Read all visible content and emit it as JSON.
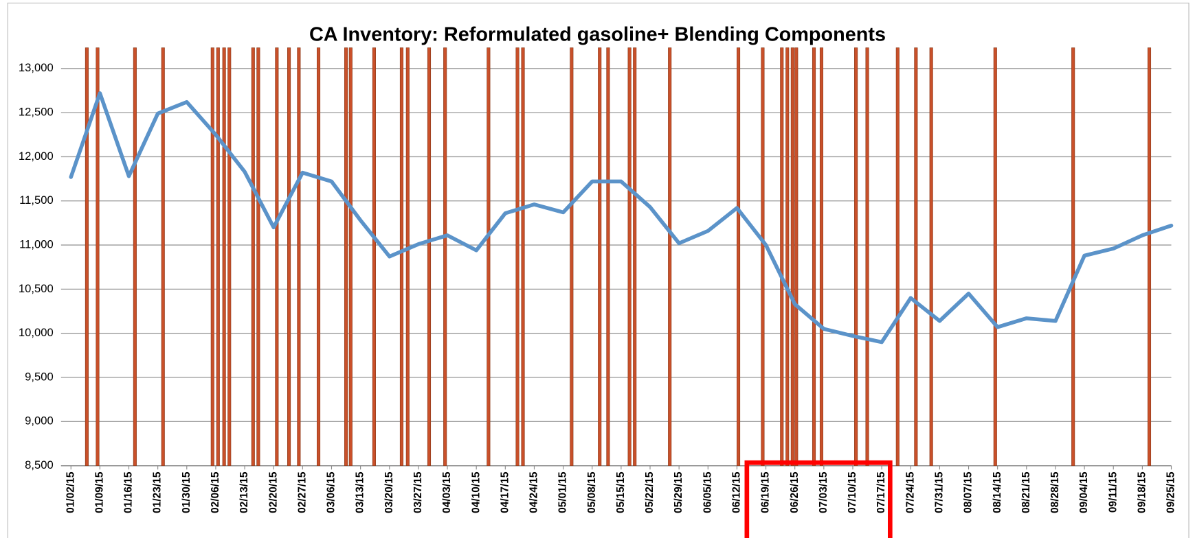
{
  "chart_data": {
    "type": "line",
    "title": "CA Inventory: Reformulated gasoline+ Blending Components",
    "categories": [
      "01/02/15",
      "01/09/15",
      "01/16/15",
      "01/23/15",
      "01/30/15",
      "02/06/15",
      "02/13/15",
      "02/20/15",
      "02/27/15",
      "03/06/15",
      "03/13/15",
      "03/20/15",
      "03/27/15",
      "04/03/15",
      "04/10/15",
      "04/17/15",
      "04/24/15",
      "05/01/15",
      "05/08/15",
      "05/15/15",
      "05/22/15",
      "05/29/15",
      "06/05/15",
      "06/12/15",
      "06/19/15",
      "06/26/15",
      "07/03/15",
      "07/10/15",
      "07/17/15",
      "07/24/15",
      "07/31/15",
      "08/07/15",
      "08/14/15",
      "08/21/15",
      "08/28/15",
      "09/04/15",
      "09/11/15",
      "09/18/15",
      "09/25/15"
    ],
    "series": [
      {
        "color": "#5b93c9",
        "values": [
          11770,
          12720,
          11780,
          12490,
          12620,
          12250,
          11830,
          11200,
          11820,
          11720,
          11280,
          10870,
          11010,
          11110,
          10940,
          11360,
          11460,
          11370,
          11720,
          11720,
          11430,
          11020,
          11160,
          11420,
          11000,
          10330,
          10050,
          9970,
          9900,
          10400,
          10140,
          10450,
          10070,
          10170,
          10140,
          10880,
          10960,
          11110,
          11220
        ]
      }
    ],
    "markers": {
      "color": "#c9502a",
      "x": [
        0.55,
        0.92,
        2.21,
        3.18,
        4.89,
        5.08,
        5.29,
        5.47,
        6.29,
        6.47,
        7.11,
        7.53,
        7.87,
        8.55,
        9.5,
        9.66,
        10.47,
        11.42,
        11.63,
        12.37,
        12.92,
        14.42,
        15.42,
        15.61,
        17.29,
        18.26,
        18.55,
        19.29,
        19.47,
        20.68,
        23.05,
        23.89,
        24.55,
        24.74,
        24.92,
        25.05,
        25.66,
        25.92,
        27.11,
        27.5,
        28.55,
        29.18,
        29.71,
        31.92,
        34.61,
        37.24
      ]
    },
    "ylim": [
      8500,
      13200
    ],
    "yticks": [
      {
        "value": 8500,
        "label": "8,500"
      },
      {
        "value": 9000,
        "label": "9,000"
      },
      {
        "value": 9500,
        "label": "9,500"
      },
      {
        "value": 10000,
        "label": "10,000"
      },
      {
        "value": 10500,
        "label": "10,500"
      },
      {
        "value": 11000,
        "label": "11,000"
      },
      {
        "value": 11500,
        "label": "11,500"
      },
      {
        "value": 12000,
        "label": "12,000"
      },
      {
        "value": 12500,
        "label": "12,500"
      },
      {
        "value": 13000,
        "label": "13,000"
      }
    ],
    "grid": true
  }
}
